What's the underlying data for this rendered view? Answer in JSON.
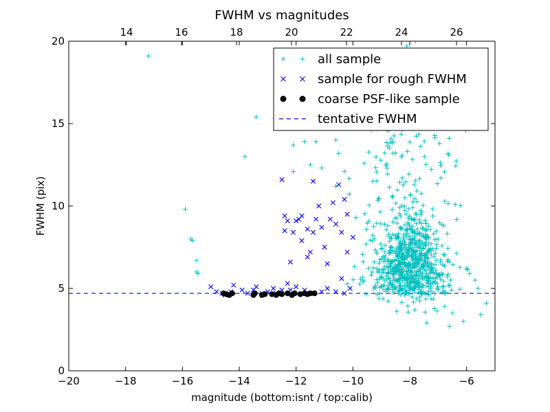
{
  "chart_data": {
    "type": "scatter",
    "title": "FWHM vs magnitudes",
    "xlabel": "magnitude (bottom:isnt / top:calib)",
    "ylabel": "FWHM (pix)",
    "xlim": [
      -20,
      -5
    ],
    "ylim": [
      0,
      20
    ],
    "top_xlim": [
      11.9,
      27.4
    ],
    "x_ticks": [
      -20,
      -18,
      -16,
      -14,
      -12,
      -10,
      -8,
      -6
    ],
    "x_tick_labels": [
      "−20",
      "−18",
      "−16",
      "−14",
      "−12",
      "−10",
      "−8",
      "−6"
    ],
    "top_x_ticks": [
      14,
      16,
      18,
      20,
      22,
      24,
      26
    ],
    "top_x_tick_labels": [
      "14",
      "16",
      "18",
      "20",
      "22",
      "24",
      "26"
    ],
    "y_ticks": [
      0,
      5,
      10,
      15,
      20
    ],
    "y_tick_labels": [
      "0",
      "5",
      "10",
      "15",
      "20"
    ],
    "grid": false,
    "legend_position": "top-right",
    "series": [
      {
        "name": "all sample",
        "marker": "plus",
        "color": "#00bfbf",
        "cluster": {
          "x_range": [
            -10.2,
            -5.3
          ],
          "y_range": [
            2.7,
            19.9
          ],
          "center": [
            -8.0,
            7.0
          ],
          "count": 900
        },
        "points": [
          [
            -17.2,
            19.1
          ],
          [
            -15.9,
            9.8
          ],
          [
            -15.7,
            8.0
          ],
          [
            -15.65,
            7.9
          ],
          [
            -15.5,
            6.7
          ],
          [
            -15.5,
            6.0
          ],
          [
            -15.45,
            5.9
          ],
          [
            -13.4,
            15.4
          ],
          [
            -13.8,
            13.0
          ],
          [
            -12.1,
            13.7
          ],
          [
            -12.1,
            12.1
          ],
          [
            -11.7,
            13.9
          ],
          [
            -11.3,
            13.9
          ],
          [
            -11.5,
            12.5
          ],
          [
            -11.1,
            12.3
          ],
          [
            -10.6,
            14.0
          ],
          [
            -10.5,
            13.2
          ],
          [
            -10.3,
            12.1
          ],
          [
            -10.6,
            11.2
          ],
          [
            -9.8,
            16.8
          ],
          [
            -9.1,
            16.0
          ],
          [
            -8.1,
            19.7
          ],
          [
            -7.8,
            20.0
          ],
          [
            -7.3,
            16.3
          ],
          [
            -6.9,
            11.7
          ],
          [
            -6.4,
            10.1
          ],
          [
            -6.8,
            8.8
          ],
          [
            -6.6,
            6.6
          ],
          [
            -6.0,
            6.2
          ],
          [
            -5.9,
            5.9
          ],
          [
            -5.7,
            5.5
          ],
          [
            -5.6,
            5.0
          ],
          [
            -5.3,
            4.1
          ],
          [
            -5.5,
            3.4
          ],
          [
            -6.5,
            3.5
          ],
          [
            -6.6,
            2.7
          ],
          [
            -7.4,
            2.9
          ],
          [
            -9.6,
            12.6
          ],
          [
            -9.3,
            11.5
          ],
          [
            -8.7,
            13.8
          ]
        ]
      },
      {
        "name": "sample for rough FWHM",
        "marker": "x",
        "color": "#0000ff",
        "points": [
          [
            -15.0,
            5.1
          ],
          [
            -14.8,
            4.8
          ],
          [
            -14.6,
            4.7
          ],
          [
            -14.5,
            4.6
          ],
          [
            -14.3,
            4.8
          ],
          [
            -14.2,
            5.2
          ],
          [
            -13.9,
            4.9
          ],
          [
            -13.7,
            4.7
          ],
          [
            -13.5,
            4.9
          ],
          [
            -13.4,
            5.1
          ],
          [
            -13.2,
            4.7
          ],
          [
            -13.0,
            4.8
          ],
          [
            -12.8,
            5.0
          ],
          [
            -12.7,
            4.7
          ],
          [
            -12.5,
            4.9
          ],
          [
            -12.5,
            11.6
          ],
          [
            -12.4,
            9.4
          ],
          [
            -12.4,
            8.5
          ],
          [
            -12.3,
            9.1
          ],
          [
            -12.3,
            5.3
          ],
          [
            -12.2,
            4.9
          ],
          [
            -12.1,
            8.4
          ],
          [
            -12.0,
            9.1
          ],
          [
            -12.0,
            5.1
          ],
          [
            -11.9,
            9.2
          ],
          [
            -11.8,
            9.4
          ],
          [
            -11.8,
            7.9
          ],
          [
            -11.7,
            4.9
          ],
          [
            -11.6,
            8.6
          ],
          [
            -11.5,
            7.2
          ],
          [
            -11.4,
            11.5
          ],
          [
            -11.4,
            8.4
          ],
          [
            -11.3,
            9.2
          ],
          [
            -11.2,
            10.0
          ],
          [
            -11.1,
            8.7
          ],
          [
            -11.0,
            7.5
          ],
          [
            -10.9,
            5.0
          ],
          [
            -10.8,
            9.2
          ],
          [
            -10.7,
            10.2
          ],
          [
            -10.6,
            8.9
          ],
          [
            -10.5,
            11.3
          ],
          [
            -10.4,
            8.4
          ],
          [
            -10.4,
            5.6
          ],
          [
            -10.3,
            10.4
          ],
          [
            -10.2,
            9.5
          ],
          [
            -10.2,
            7.2
          ],
          [
            -10.1,
            5.0
          ],
          [
            -10.0,
            8.1
          ],
          [
            -12.2,
            6.6
          ],
          [
            -11.1,
            4.8
          ],
          [
            -10.6,
            4.8
          ],
          [
            -10.3,
            4.7
          ],
          [
            -11.5,
            4.7
          ],
          [
            -10.9,
            6.5
          ],
          [
            -11.6,
            6.9
          ]
        ]
      },
      {
        "name": "coarse PSF-like sample",
        "marker": "dot",
        "color": "#000000",
        "points": [
          [
            -14.55,
            4.7
          ],
          [
            -14.45,
            4.65
          ],
          [
            -14.35,
            4.6
          ],
          [
            -14.25,
            4.7
          ],
          [
            -13.5,
            4.6
          ],
          [
            -13.45,
            4.7
          ],
          [
            -13.2,
            4.6
          ],
          [
            -13.1,
            4.65
          ],
          [
            -12.85,
            4.65
          ],
          [
            -12.7,
            4.6
          ],
          [
            -12.6,
            4.7
          ],
          [
            -12.5,
            4.65
          ],
          [
            -12.3,
            4.7
          ],
          [
            -12.15,
            4.6
          ],
          [
            -12.05,
            4.7
          ],
          [
            -11.85,
            4.65
          ],
          [
            -11.7,
            4.7
          ],
          [
            -11.6,
            4.65
          ],
          [
            -11.5,
            4.7
          ],
          [
            -11.35,
            4.7
          ]
        ]
      },
      {
        "name": "tentative FWHM",
        "marker": "dashed-line",
        "color": "#0000ff",
        "y": 4.7
      }
    ]
  }
}
